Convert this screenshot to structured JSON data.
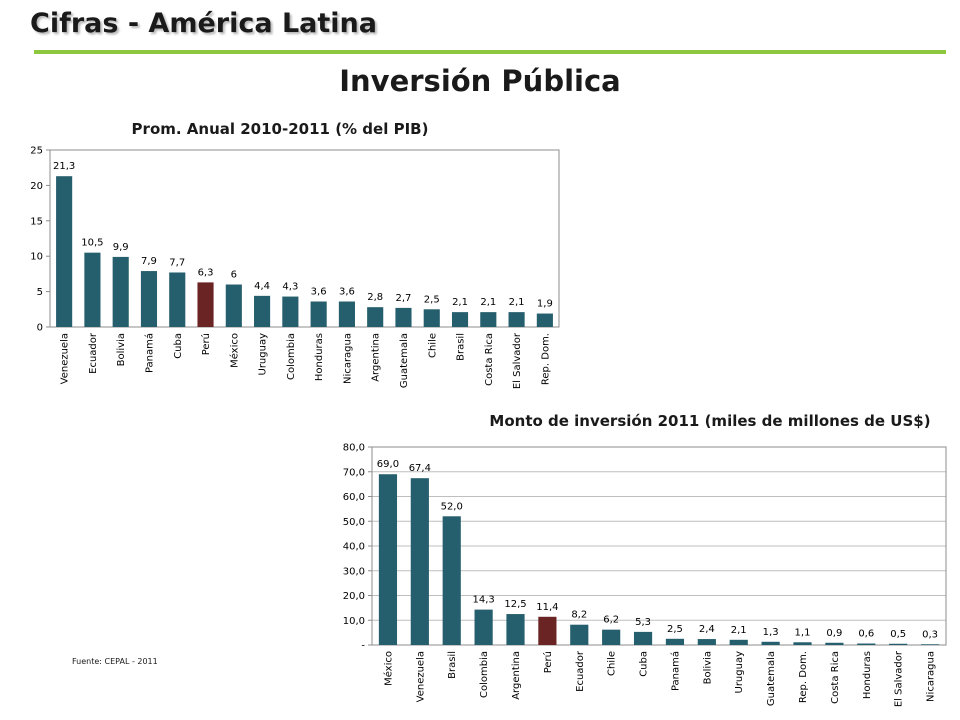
{
  "header": {
    "title": "Cifras - América Latina"
  },
  "main_title": "Inversión Pública",
  "source": "Fuente: CEPAL - 2011",
  "colors": {
    "bar": "#255e6c",
    "highlight": "#6b2424",
    "rule": "#8dc63f"
  },
  "chart_data": [
    {
      "type": "bar",
      "title": "Prom. Anual 2010-2011 (% del PIB)",
      "categories": [
        "Venezuela",
        "Ecuador",
        "Bolivia",
        "Panamá",
        "Cuba",
        "Perú",
        "México",
        "Uruguay",
        "Colombia",
        "Honduras",
        "Nicaragua",
        "Argentina",
        "Guatemala",
        "Chile",
        "Brasil",
        "Costa Rica",
        "El Salvador",
        "Rep. Dom."
      ],
      "values": [
        21.3,
        10.5,
        9.9,
        7.9,
        7.7,
        6.3,
        6,
        4.4,
        4.3,
        3.6,
        3.6,
        2.8,
        2.7,
        2.5,
        2.1,
        2.1,
        2.1,
        1.9
      ],
      "data_labels": [
        "21,3",
        "10,5",
        "9,9",
        "7,9",
        "7,7",
        "6,3",
        "6",
        "4,4",
        "4,3",
        "3,6",
        "3,6",
        "2,8",
        "2,7",
        "2,5",
        "2,1",
        "2,1",
        "2,1",
        "1,9"
      ],
      "highlight": "Perú",
      "ylim": [
        0,
        25
      ],
      "yticks": [
        0,
        5,
        10,
        15,
        20,
        25
      ],
      "ytick_labels": [
        "0",
        "5",
        "10",
        "15",
        "20",
        "25"
      ],
      "grid": false
    },
    {
      "type": "bar",
      "title": "Monto de inversión 2011 (miles de millones de US$)",
      "categories": [
        "México",
        "Venezuela",
        "Brasil",
        "Colombia",
        "Argentina",
        "Perú",
        "Ecuador",
        "Chile",
        "Cuba",
        "Panamá",
        "Bolivia",
        "Uruguay",
        "Guatemala",
        "Rep. Dom.",
        "Costa Rica",
        "Honduras",
        "El Salvador",
        "Nicaragua"
      ],
      "values": [
        69.0,
        67.4,
        52.0,
        14.3,
        12.5,
        11.4,
        8.2,
        6.2,
        5.3,
        2.5,
        2.4,
        2.1,
        1.3,
        1.1,
        0.9,
        0.6,
        0.5,
        0.3
      ],
      "data_labels": [
        "69,0",
        "67,4",
        "52,0",
        "14,3",
        "12,5",
        "11,4",
        "8,2",
        "6,2",
        "5,3",
        "2,5",
        "2,4",
        "2,1",
        "1,3",
        "1,1",
        "0,9",
        "0,6",
        "0,5",
        "0,3"
      ],
      "highlight": "Perú",
      "ylim": [
        0,
        80
      ],
      "yticks": [
        0,
        10,
        20,
        30,
        40,
        50,
        60,
        70,
        80
      ],
      "ytick_labels": [
        "-",
        "10,0",
        "20,0",
        "30,0",
        "40,0",
        "50,0",
        "60,0",
        "70,0",
        "80,0"
      ],
      "grid": true
    }
  ]
}
